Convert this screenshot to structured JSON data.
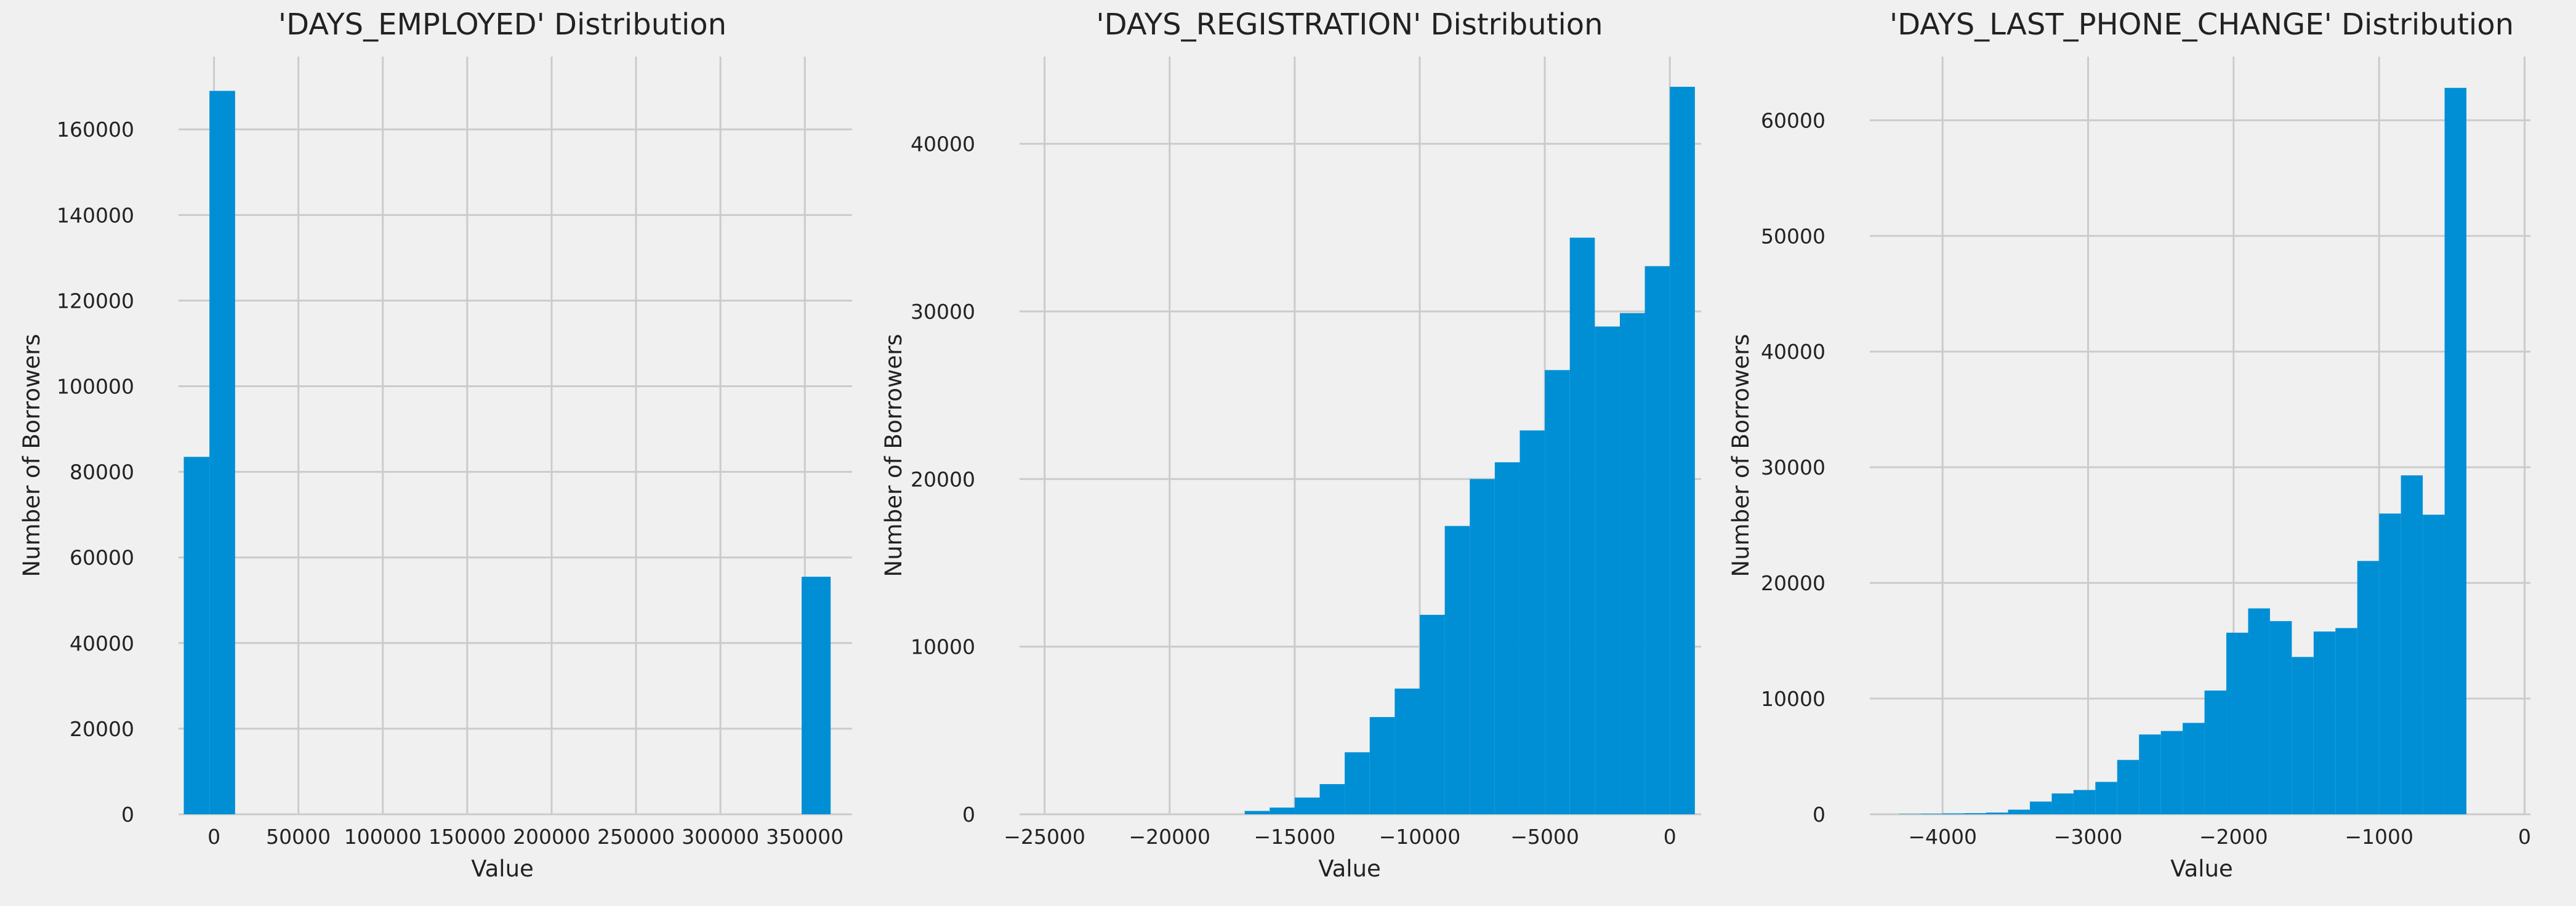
{
  "chart_data": [
    {
      "type": "bar",
      "title": "'DAYS_EMPLOYED' Distribution",
      "xlabel": "Value",
      "ylabel": "Number of Borrowers",
      "xlim": [
        -21000,
        378000
      ],
      "ylim": [
        0,
        177000
      ],
      "xticks": [
        0,
        50000,
        100000,
        150000,
        200000,
        250000,
        300000,
        350000
      ],
      "xtick_labels": [
        "0",
        "50000",
        "100000",
        "150000",
        "200000",
        "250000",
        "300000",
        "350000"
      ],
      "yticks": [
        0,
        20000,
        40000,
        60000,
        80000,
        100000,
        120000,
        140000,
        160000
      ],
      "ytick_labels": [
        "0",
        "20000",
        "40000",
        "60000",
        "80000",
        "100000",
        "120000",
        "140000",
        "160000"
      ],
      "grid": true,
      "bar_color": "#008fd5",
      "bins": [
        {
          "x0": -17900,
          "x1": -2700,
          "value": 83500
        },
        {
          "x0": -2700,
          "x1": 12500,
          "value": 169000
        },
        {
          "x0": 348100,
          "x1": 365300,
          "value": 55500
        }
      ]
    },
    {
      "type": "bar",
      "title": "'DAYS_REGISTRATION' Distribution",
      "xlabel": "Value",
      "ylabel": "Number of Borrowers",
      "xlim": [
        -26000,
        1250
      ],
      "ylim": [
        0,
        45200
      ],
      "xticks": [
        -25000,
        -20000,
        -15000,
        -10000,
        -5000,
        0
      ],
      "xtick_labels": [
        "−25000",
        "−20000",
        "−15000",
        "−10000",
        "−5000",
        "0"
      ],
      "yticks": [
        0,
        10000,
        20000,
        30000,
        40000
      ],
      "ytick_labels": [
        "0",
        "10000",
        "20000",
        "30000",
        "40000"
      ],
      "grid": true,
      "bar_color": "#008fd5",
      "bins": [
        {
          "x0": -17000,
          "x1": -16000,
          "value": 200
        },
        {
          "x0": -16000,
          "x1": -15000,
          "value": 400
        },
        {
          "x0": -15000,
          "x1": -14000,
          "value": 1000
        },
        {
          "x0": -14000,
          "x1": -13000,
          "value": 1800
        },
        {
          "x0": -13000,
          "x1": -12000,
          "value": 3700
        },
        {
          "x0": -12000,
          "x1": -11000,
          "value": 5800
        },
        {
          "x0": -11000,
          "x1": -10000,
          "value": 7500
        },
        {
          "x0": -10000,
          "x1": -9000,
          "value": 11900
        },
        {
          "x0": -9000,
          "x1": -8000,
          "value": 17200
        },
        {
          "x0": -8000,
          "x1": -7000,
          "value": 20000
        },
        {
          "x0": -7000,
          "x1": -6000,
          "value": 21000
        },
        {
          "x0": -6000,
          "x1": -5000,
          "value": 22900
        },
        {
          "x0": -5000,
          "x1": -4000,
          "value": 26500
        },
        {
          "x0": -4000,
          "x1": -3000,
          "value": 34400
        },
        {
          "x0": -3000,
          "x1": -2000,
          "value": 29100
        },
        {
          "x0": -2000,
          "x1": -1000,
          "value": 29900
        },
        {
          "x0": -1000,
          "x1": 0,
          "value": 32700
        },
        {
          "x0": 0,
          "x1": 1000,
          "value": 43400
        }
      ]
    },
    {
      "type": "bar",
      "title": "'DAYS_LAST_PHONE_CHANGE' Distribution",
      "xlabel": "Value",
      "ylabel": "Number of Borrowers",
      "xlim": [
        -4500,
        40
      ],
      "ylim": [
        0,
        65500
      ],
      "xticks": [
        -4000,
        -3000,
        -2000,
        -1000,
        0
      ],
      "xtick_labels": [
        "−4000",
        "−3000",
        "−2000",
        "−1000",
        "0"
      ],
      "yticks": [
        0,
        10000,
        20000,
        30000,
        40000,
        50000,
        60000
      ],
      "ytick_labels": [
        "0",
        "10000",
        "20000",
        "30000",
        "40000",
        "50000",
        "60000"
      ],
      "grid": true,
      "bar_color": "#008fd5",
      "bins": [
        {
          "x0": -4300,
          "x1": -4150,
          "value": 30
        },
        {
          "x0": -4150,
          "x1": -4000,
          "value": 50
        },
        {
          "x0": -4000,
          "x1": -3850,
          "value": 80
        },
        {
          "x0": -3850,
          "x1": -3700,
          "value": 100
        },
        {
          "x0": -3700,
          "x1": -3550,
          "value": 150
        },
        {
          "x0": -3550,
          "x1": -3400,
          "value": 400
        },
        {
          "x0": -3400,
          "x1": -3250,
          "value": 1100
        },
        {
          "x0": -3250,
          "x1": -3100,
          "value": 1800
        },
        {
          "x0": -3100,
          "x1": -2950,
          "value": 2100
        },
        {
          "x0": -2950,
          "x1": -2800,
          "value": 2800
        },
        {
          "x0": -2800,
          "x1": -2650,
          "value": 4700
        },
        {
          "x0": -2650,
          "x1": -2500,
          "value": 6900
        },
        {
          "x0": -2500,
          "x1": -2350,
          "value": 7200
        },
        {
          "x0": -2350,
          "x1": -2200,
          "value": 7900
        },
        {
          "x0": -2200,
          "x1": -2050,
          "value": 10700
        },
        {
          "x0": -2050,
          "x1": -1900,
          "value": 15700
        },
        {
          "x0": -1900,
          "x1": -1750,
          "value": 17800
        },
        {
          "x0": -1750,
          "x1": -1600,
          "value": 16700
        },
        {
          "x0": -1600,
          "x1": -1450,
          "value": 13600
        },
        {
          "x0": -1450,
          "x1": -1300,
          "value": 15800
        },
        {
          "x0": -1300,
          "x1": -1150,
          "value": 16100
        },
        {
          "x0": -1150,
          "x1": -1000,
          "value": 21900
        },
        {
          "x0": -1000,
          "x1": -850,
          "value": 26000
        },
        {
          "x0": -850,
          "x1": -700,
          "value": 29300
        },
        {
          "x0": -700,
          "x1": -550,
          "value": 25900
        },
        {
          "x0": -550,
          "x1": -400,
          "value": 62800
        }
      ]
    }
  ]
}
